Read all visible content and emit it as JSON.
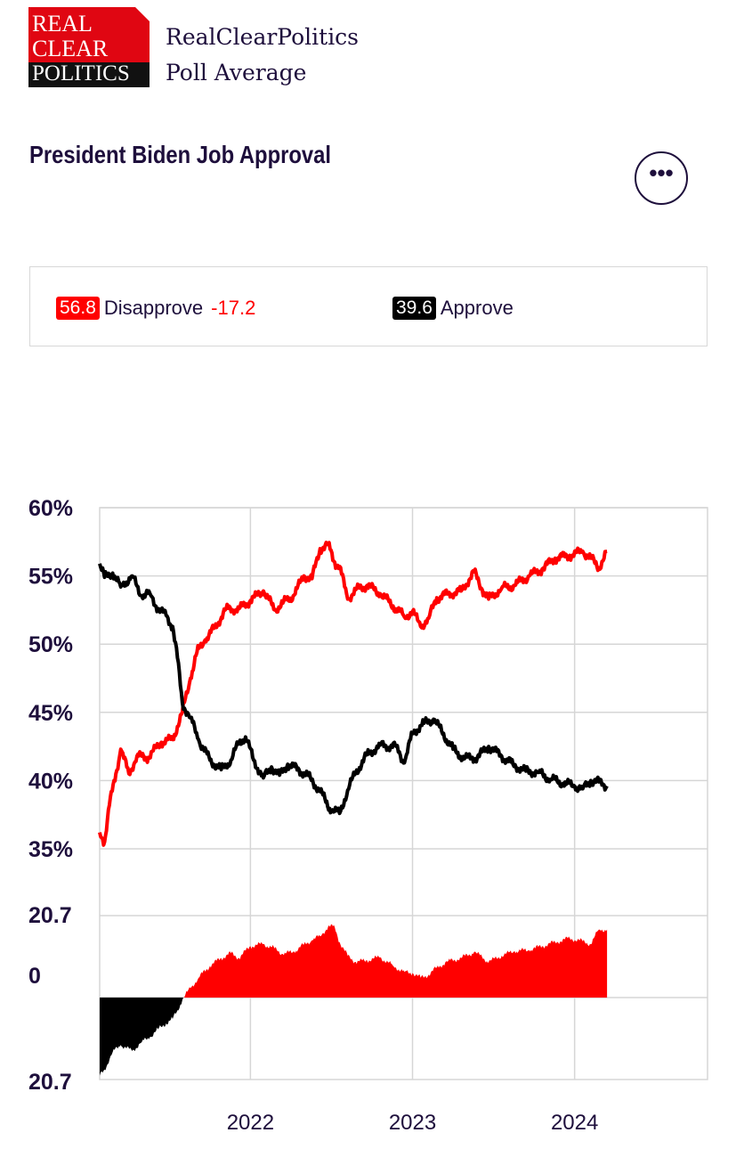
{
  "header": {
    "logo_lines": [
      "REAL",
      "CLEAR",
      "POLITICS"
    ],
    "brand_line1": "RealClearPolitics",
    "brand_line2": "Poll Average"
  },
  "title": "President Biden Job Approval",
  "more_button": {
    "icon": "ellipsis-icon",
    "label": "•••"
  },
  "legend": {
    "disapprove": {
      "value": "56.8",
      "label": "Disapprove",
      "spread": "-17.2",
      "color": "#ff0000"
    },
    "approve": {
      "value": "39.6",
      "label": "Approve",
      "color": "#000000"
    }
  },
  "chart_data": {
    "type": "line",
    "y_ticks": [
      "60%",
      "55%",
      "50%",
      "45%",
      "40%",
      "35%"
    ],
    "ylim": [
      35,
      60
    ],
    "x_ticks": [
      "2022",
      "2023",
      "2024"
    ],
    "xlim": [
      2021.07,
      2024.82
    ],
    "series": [
      {
        "name": "Disapprove",
        "color": "#ff0000",
        "x": [
          2021.07,
          2021.1,
          2021.13,
          2021.17,
          2021.2,
          2021.25,
          2021.3,
          2021.37,
          2021.45,
          2021.52,
          2021.58,
          2021.63,
          2021.67,
          2021.72,
          2021.78,
          2021.85,
          2021.93,
          2022.0,
          2022.08,
          2022.15,
          2022.2,
          2022.27,
          2022.33,
          2022.38,
          2022.43,
          2022.48,
          2022.52,
          2022.55,
          2022.6,
          2022.65,
          2022.72,
          2022.8,
          2022.88,
          2022.95,
          2023.0,
          2023.05,
          2023.1,
          2023.15,
          2023.22,
          2023.3,
          2023.38,
          2023.43,
          2023.47,
          2023.55,
          2023.63,
          2023.72,
          2023.8,
          2023.88,
          2023.97,
          2024.05,
          2024.1,
          2024.15,
          2024.2
        ],
        "values": [
          36.2,
          35.5,
          38.2,
          40.5,
          42.3,
          40.5,
          41.8,
          41.7,
          42.8,
          43.0,
          45.0,
          47.5,
          49.4,
          50.3,
          51.2,
          52.6,
          52.6,
          53.2,
          53.9,
          52.5,
          53.0,
          53.6,
          55.0,
          54.8,
          57.0,
          57.3,
          56.0,
          55.7,
          53.3,
          54.0,
          54.3,
          53.7,
          52.8,
          52.0,
          52.4,
          51.3,
          51.9,
          53.4,
          53.7,
          53.9,
          55.3,
          54.0,
          53.3,
          54.1,
          54.3,
          55.0,
          55.5,
          56.3,
          56.5,
          56.8,
          56.3,
          55.6,
          56.8
        ]
      },
      {
        "name": "Approve",
        "color": "#000000",
        "x": [
          2021.07,
          2021.1,
          2021.15,
          2021.2,
          2021.27,
          2021.33,
          2021.38,
          2021.43,
          2021.48,
          2021.52,
          2021.55,
          2021.58,
          2021.63,
          2021.68,
          2021.75,
          2021.82,
          2021.88,
          2021.93,
          2021.97,
          2022.02,
          2022.08,
          2022.13,
          2022.18,
          2022.23,
          2022.3,
          2022.37,
          2022.43,
          2022.5,
          2022.55,
          2022.6,
          2022.65,
          2022.72,
          2022.8,
          2022.9,
          2022.95,
          2023.0,
          2023.07,
          2023.13,
          2023.18,
          2023.25,
          2023.32,
          2023.4,
          2023.47,
          2023.55,
          2023.62,
          2023.7,
          2023.78,
          2023.85,
          2023.93,
          2024.0,
          2024.05,
          2024.1,
          2024.15,
          2024.2
        ],
        "values": [
          55.9,
          54.9,
          55.2,
          54.2,
          55.0,
          53.5,
          53.7,
          52.6,
          52.1,
          51.3,
          49.0,
          45.7,
          44.6,
          43.0,
          41.5,
          40.8,
          41.5,
          42.8,
          43.2,
          41.5,
          40.2,
          41.0,
          40.4,
          41.2,
          40.8,
          40.2,
          39.2,
          37.8,
          37.6,
          39.3,
          40.6,
          41.9,
          42.6,
          42.5,
          41.3,
          43.5,
          44.2,
          44.5,
          43.6,
          42.3,
          41.6,
          41.7,
          42.5,
          41.8,
          41.2,
          40.7,
          40.6,
          40.1,
          39.8,
          39.6,
          39.4,
          40.0,
          39.9,
          39.6
        ]
      },
      {
        "name": "Spread",
        "type": "area",
        "y_ticks": [
          "20.7",
          "0",
          "20.7"
        ],
        "ylim": [
          -20.7,
          20.7
        ],
        "positive_color": "#ff0000",
        "negative_color": "#000000",
        "x": [
          2021.07,
          2021.1,
          2021.15,
          2021.2,
          2021.27,
          2021.33,
          2021.38,
          2021.43,
          2021.48,
          2021.52,
          2021.55,
          2021.58,
          2021.63,
          2021.68,
          2021.75,
          2021.82,
          2021.88,
          2021.93,
          2022.0,
          2022.08,
          2022.15,
          2022.2,
          2022.27,
          2022.33,
          2022.38,
          2022.43,
          2022.48,
          2022.52,
          2022.55,
          2022.6,
          2022.65,
          2022.72,
          2022.8,
          2022.88,
          2022.95,
          2023.0,
          2023.05,
          2023.1,
          2023.15,
          2023.22,
          2023.3,
          2023.38,
          2023.43,
          2023.47,
          2023.55,
          2023.63,
          2023.72,
          2023.8,
          2023.88,
          2023.97,
          2024.05,
          2024.1,
          2024.15,
          2024.2
        ],
        "values": [
          -19.7,
          -18.2,
          -13.8,
          -12.0,
          -13.5,
          -11.2,
          -10.0,
          -8.0,
          -6.5,
          -5.4,
          -3.2,
          -0.6,
          2.4,
          5.0,
          8.0,
          10.0,
          11.2,
          10.0,
          13.0,
          13.5,
          12.4,
          11.0,
          11.6,
          13.4,
          14.5,
          15.5,
          18.0,
          17.8,
          14.0,
          10.5,
          9.0,
          9.4,
          10.2,
          8.0,
          6.5,
          6.2,
          5.0,
          5.8,
          7.6,
          9.2,
          10.0,
          11.5,
          10.2,
          9.0,
          10.6,
          11.7,
          12.0,
          13.0,
          14.0,
          15.0,
          14.2,
          13.5,
          17.2,
          17.2
        ]
      }
    ],
    "grid": true,
    "legend_position": "top"
  }
}
